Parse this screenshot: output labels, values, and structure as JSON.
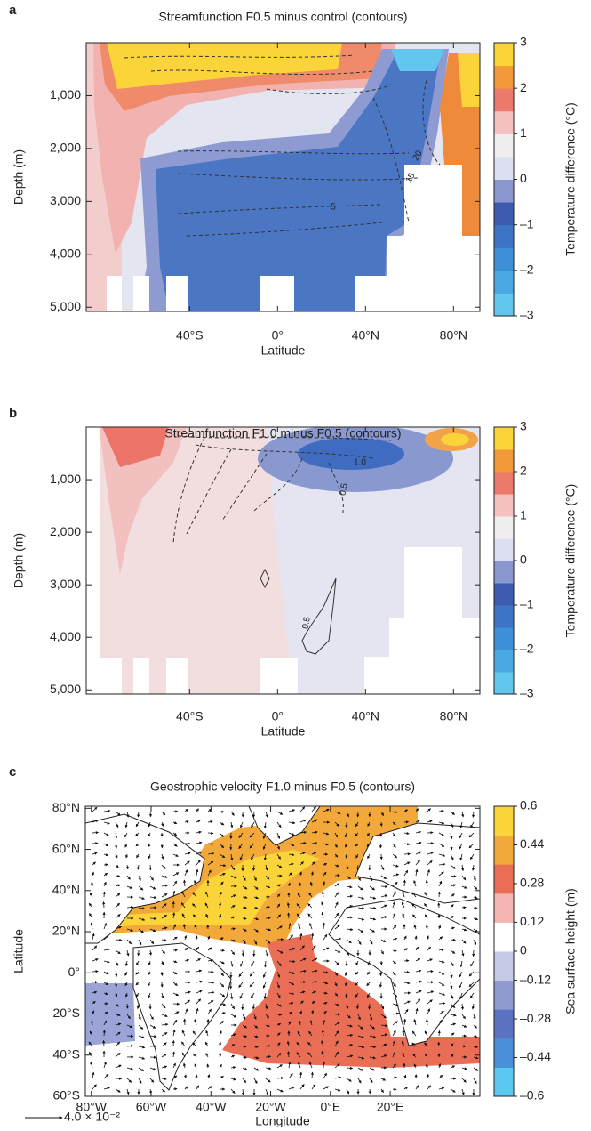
{
  "chart_data": [
    {
      "type": "contour",
      "panel": "a",
      "title": "Streamfunction F0.5 minus control (contours)",
      "xlabel": "Latitude",
      "ylabel": "Depth (m)",
      "xlim": [
        -87,
        92
      ],
      "xticks": [
        {
          "value": -40,
          "label": "40°S"
        },
        {
          "value": 0,
          "label": "0°"
        },
        {
          "value": 40,
          "label": "40°N"
        },
        {
          "value": 80,
          "label": "80°N"
        }
      ],
      "ylim": [
        0,
        5080
      ],
      "y_inverted": true,
      "yticks": [
        {
          "value": 1000,
          "label": "1,000"
        },
        {
          "value": 2000,
          "label": "2,000"
        },
        {
          "value": 3000,
          "label": "3,000"
        },
        {
          "value": 4000,
          "label": "4,000"
        },
        {
          "value": 5000,
          "label": "5,000"
        }
      ],
      "contour_labels": [
        "20",
        "15",
        "5"
      ],
      "colorbar": {
        "label": "Temperature difference (°C)",
        "lim": [
          -3,
          3
        ],
        "ticks": [
          3,
          2,
          1,
          0,
          {
            "value": -1,
            "label": "–1"
          },
          {
            "value": -2,
            "label": "–2"
          },
          {
            "value": -3,
            "label": "–3"
          }
        ],
        "colors": [
          "#62c6ef",
          "#4aa9e2",
          "#3d8fd6",
          "#3d74c4",
          "#3d5cb0",
          "#8b98cf",
          "#dcdff0",
          "#eeeeee",
          "#f4c0c0",
          "#ec7a6c",
          "#f29a3a",
          "#fbd43a"
        ]
      }
    },
    {
      "type": "contour",
      "panel": "b",
      "title": "Streamfunction F1.0 minus F0.5 (contours)",
      "xlabel": "Latitude",
      "ylabel": "Depth (m)",
      "xlim": [
        -87,
        92
      ],
      "xticks": [
        {
          "value": -40,
          "label": "40°S"
        },
        {
          "value": 0,
          "label": "0°"
        },
        {
          "value": 40,
          "label": "40°N"
        },
        {
          "value": 80,
          "label": "80°N"
        }
      ],
      "ylim": [
        0,
        5080
      ],
      "y_inverted": true,
      "yticks": [
        {
          "value": 1000,
          "label": "1,000"
        },
        {
          "value": 2000,
          "label": "2,000"
        },
        {
          "value": 3000,
          "label": "3,000"
        },
        {
          "value": 4000,
          "label": "4,000"
        },
        {
          "value": 5000,
          "label": "5,000"
        }
      ],
      "contour_labels": [
        "1.0",
        "0.5",
        "0.5"
      ],
      "colorbar": {
        "label": "Temperature difference (°C)",
        "lim": [
          -3,
          3
        ],
        "ticks": [
          3,
          2,
          1,
          0,
          {
            "value": -1,
            "label": "–1"
          },
          {
            "value": -2,
            "label": "–2"
          },
          {
            "value": -3,
            "label": "–3"
          }
        ],
        "colors": [
          "#62c6ef",
          "#4aa9e2",
          "#3d8fd6",
          "#3d74c4",
          "#3d5cb0",
          "#8b98cf",
          "#dcdff0",
          "#eeeeee",
          "#f4c0c0",
          "#ec7a6c",
          "#f29a3a",
          "#fbd43a"
        ]
      }
    },
    {
      "type": "vector-map",
      "panel": "c",
      "title": "Geostrophic velocity F1.0 minus F0.5 (contours)",
      "xlabel": "Longitude",
      "ylabel": "Latitude",
      "xlim": [
        -82,
        50
      ],
      "xticks": [
        {
          "value": -80,
          "label": "80°W"
        },
        {
          "value": -60,
          "label": "60°W"
        },
        {
          "value": -40,
          "label": "40°W"
        },
        {
          "value": -20,
          "label": "20°W"
        },
        {
          "value": 0,
          "label": "0°E"
        },
        {
          "value": 20,
          "label": "20°E"
        }
      ],
      "ylim": [
        -60,
        81
      ],
      "y_inverted": false,
      "yticks": [
        {
          "value": 80,
          "label": "80°N"
        },
        {
          "value": 60,
          "label": "60°N"
        },
        {
          "value": 40,
          "label": "40°N"
        },
        {
          "value": 20,
          "label": "20°N"
        },
        {
          "value": 0,
          "label": "0°"
        },
        {
          "value": -20,
          "label": "20°S"
        },
        {
          "value": -40,
          "label": "40°S"
        },
        {
          "value": -60,
          "label": "60°S"
        }
      ],
      "reference_vector_label": "4.0 × 10⁻²",
      "colorbar": {
        "label": "Sea surface height (m)",
        "lim": [
          -0.6,
          0.6
        ],
        "ticks": [
          0.6,
          0.44,
          0.28,
          0.12,
          0,
          {
            "value": -0.12,
            "label": "–0.12"
          },
          {
            "value": -0.28,
            "label": "–0.28"
          },
          {
            "value": -0.44,
            "label": "–0.44"
          },
          {
            "value": -0.6,
            "label": "–0.6"
          }
        ],
        "colors": [
          "#5bc8f0",
          "#4b8fd8",
          "#5a72c0",
          "#8f9bd0",
          "#c4c9e6",
          "#ffffff",
          "#f4b6b0",
          "#ea6d55",
          "#f2a93a",
          "#fbd43a"
        ]
      }
    }
  ]
}
